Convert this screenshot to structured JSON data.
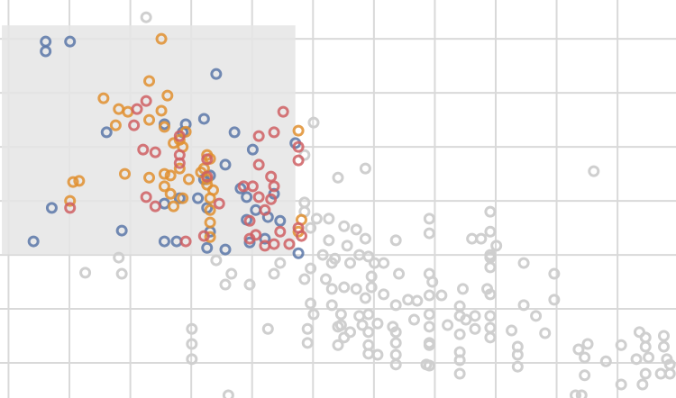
{
  "chart_data": {
    "type": "scatter",
    "title": "",
    "xlabel": "",
    "ylabel": "",
    "grid": true,
    "legend": "none",
    "xlim": [
      0,
      11.1
    ],
    "ylim": [
      0,
      7.37
    ],
    "selection_box": {
      "x": [
        0.03,
        4.85
      ],
      "y": [
        2.66,
        6.9
      ]
    },
    "colors": {
      "grid": "#d9d9d9",
      "selection": "#e5e5e5",
      "unselected": "#cfcfcf",
      "blue": "#5b77a8",
      "orange": "#e08f2f",
      "red": "#cf5f63"
    },
    "series": [
      {
        "color": "blue",
        "points": [
          [
            0.75,
            6.6
          ],
          [
            0.75,
            6.42
          ],
          [
            1.15,
            6.6
          ],
          [
            3.55,
            6.0
          ],
          [
            1.75,
            4.92
          ],
          [
            3.35,
            5.17
          ],
          [
            3.05,
            5.07
          ],
          [
            2.7,
            5.07
          ],
          [
            3.0,
            4.92
          ],
          [
            3.85,
            4.92
          ],
          [
            4.15,
            4.6
          ],
          [
            3.7,
            4.32
          ],
          [
            3.35,
            4.05
          ],
          [
            3.45,
            4.12
          ],
          [
            3.95,
            3.88
          ],
          [
            4.05,
            3.72
          ],
          [
            3.25,
            3.7
          ],
          [
            2.7,
            3.6
          ],
          [
            4.5,
            3.78
          ],
          [
            4.2,
            3.48
          ],
          [
            0.85,
            3.52
          ],
          [
            2.95,
            3.7
          ],
          [
            3.4,
            3.52
          ],
          [
            4.05,
            3.3
          ],
          [
            4.4,
            3.35
          ],
          [
            4.6,
            3.28
          ],
          [
            4.85,
            4.72
          ],
          [
            3.45,
            3.08
          ],
          [
            2.0,
            3.1
          ],
          [
            0.55,
            2.9
          ],
          [
            2.7,
            2.9
          ],
          [
            2.9,
            2.9
          ],
          [
            3.4,
            2.78
          ],
          [
            3.7,
            2.75
          ],
          [
            4.1,
            2.88
          ],
          [
            4.35,
            2.95
          ],
          [
            4.9,
            2.68
          ]
        ]
      },
      {
        "color": "orange",
        "points": [
          [
            2.65,
            6.65
          ],
          [
            2.45,
            5.87
          ],
          [
            2.75,
            5.6
          ],
          [
            1.7,
            5.55
          ],
          [
            1.95,
            5.35
          ],
          [
            2.1,
            5.3
          ],
          [
            2.65,
            5.32
          ],
          [
            2.45,
            5.15
          ],
          [
            2.7,
            5.02
          ],
          [
            1.9,
            5.05
          ],
          [
            3.05,
            4.93
          ],
          [
            2.95,
            4.78
          ],
          [
            2.85,
            4.72
          ],
          [
            3.0,
            4.65
          ],
          [
            3.4,
            4.5
          ],
          [
            4.9,
            4.95
          ],
          [
            3.45,
            4.43
          ],
          [
            2.95,
            4.25
          ],
          [
            3.3,
            4.18
          ],
          [
            3.4,
            4.05
          ],
          [
            2.05,
            4.15
          ],
          [
            2.7,
            4.15
          ],
          [
            2.8,
            4.12
          ],
          [
            3.1,
            4.05
          ],
          [
            3.35,
            4.25
          ],
          [
            1.2,
            4.0
          ],
          [
            1.3,
            4.02
          ],
          [
            1.15,
            3.65
          ],
          [
            2.45,
            4.08
          ],
          [
            2.7,
            3.92
          ],
          [
            2.8,
            3.78
          ],
          [
            3.0,
            3.7
          ],
          [
            3.4,
            3.95
          ],
          [
            3.5,
            3.85
          ],
          [
            2.85,
            3.55
          ],
          [
            3.45,
            3.7
          ],
          [
            3.45,
            3.48
          ],
          [
            3.45,
            3.25
          ],
          [
            3.45,
            2.98
          ],
          [
            4.95,
            3.3
          ],
          [
            4.9,
            3.08
          ]
        ]
      },
      {
        "color": "red",
        "points": [
          [
            2.4,
            5.5
          ],
          [
            2.25,
            5.35
          ],
          [
            4.65,
            5.3
          ],
          [
            2.2,
            5.05
          ],
          [
            2.95,
            4.85
          ],
          [
            4.25,
            4.85
          ],
          [
            4.5,
            4.92
          ],
          [
            4.9,
            4.65
          ],
          [
            2.35,
            4.6
          ],
          [
            2.55,
            4.55
          ],
          [
            2.95,
            4.5
          ],
          [
            2.95,
            4.35
          ],
          [
            3.4,
            4.42
          ],
          [
            4.25,
            4.32
          ],
          [
            4.45,
            4.1
          ],
          [
            4.9,
            4.4
          ],
          [
            3.4,
            4.1
          ],
          [
            4.0,
            3.92
          ],
          [
            4.15,
            3.92
          ],
          [
            4.5,
            3.92
          ],
          [
            4.25,
            3.72
          ],
          [
            3.6,
            3.6
          ],
          [
            2.4,
            3.72
          ],
          [
            2.55,
            3.55
          ],
          [
            4.45,
            3.68
          ],
          [
            4.35,
            3.48
          ],
          [
            1.15,
            3.52
          ],
          [
            4.1,
            3.28
          ],
          [
            4.6,
            3.08
          ],
          [
            4.9,
            3.15
          ],
          [
            4.95,
            3.0
          ],
          [
            3.05,
            2.9
          ],
          [
            3.35,
            3.0
          ],
          [
            4.1,
            2.95
          ],
          [
            4.2,
            3.02
          ],
          [
            4.35,
            2.82
          ],
          [
            4.5,
            2.85
          ],
          [
            4.75,
            2.85
          ]
        ]
      },
      {
        "color": "unselected",
        "points": [
          [
            2.4,
            7.05
          ],
          [
            5.15,
            5.1
          ],
          [
            5.0,
            4.5
          ],
          [
            6.0,
            4.25
          ],
          [
            5.55,
            4.08
          ],
          [
            9.75,
            4.2
          ],
          [
            5.0,
            3.62
          ],
          [
            5.0,
            3.45
          ],
          [
            5.2,
            3.32
          ],
          [
            5.1,
            3.15
          ],
          [
            5.4,
            3.32
          ],
          [
            5.65,
            3.18
          ],
          [
            5.85,
            3.12
          ],
          [
            6.0,
            2.95
          ],
          [
            5.4,
            2.92
          ],
          [
            5.7,
            2.82
          ],
          [
            5.9,
            2.65
          ],
          [
            6.15,
            2.5
          ],
          [
            6.5,
            2.92
          ],
          [
            7.05,
            3.32
          ],
          [
            7.05,
            3.05
          ],
          [
            8.05,
            3.45
          ],
          [
            7.75,
            2.95
          ],
          [
            7.9,
            2.95
          ],
          [
            8.05,
            3.08
          ],
          [
            8.15,
            2.82
          ],
          [
            8.05,
            2.6
          ],
          [
            1.4,
            2.32
          ],
          [
            1.95,
            2.6
          ],
          [
            4.6,
            2.5
          ],
          [
            5.1,
            2.4
          ],
          [
            5.45,
            2.5
          ],
          [
            6.1,
            2.25
          ],
          [
            6.3,
            2.5
          ],
          [
            6.55,
            2.3
          ],
          [
            7.05,
            2.3
          ],
          [
            7.1,
            2.15
          ],
          [
            7.6,
            2.02
          ],
          [
            8.0,
            2.02
          ],
          [
            8.05,
            2.42
          ],
          [
            8.6,
            2.5
          ],
          [
            9.1,
            2.3
          ],
          [
            8.05,
            2.65
          ],
          [
            3.7,
            2.1
          ],
          [
            3.8,
            2.3
          ],
          [
            4.1,
            2.1
          ],
          [
            3.55,
            2.55
          ],
          [
            4.5,
            2.3
          ],
          [
            5.0,
            2.2
          ],
          [
            5.35,
            2.2
          ],
          [
            5.45,
            2.02
          ],
          [
            5.65,
            2.05
          ],
          [
            5.85,
            2.02
          ],
          [
            6.0,
            1.85
          ],
          [
            6.1,
            2.05
          ],
          [
            6.3,
            1.92
          ],
          [
            6.5,
            1.72
          ],
          [
            6.7,
            1.82
          ],
          [
            6.85,
            1.8
          ],
          [
            7.05,
            1.9
          ],
          [
            7.25,
            1.9
          ],
          [
            7.55,
            1.7
          ],
          [
            7.55,
            1.52
          ],
          [
            8.05,
            1.92
          ],
          [
            8.05,
            1.52
          ],
          [
            8.6,
            1.72
          ],
          [
            8.8,
            1.52
          ],
          [
            9.1,
            1.82
          ],
          [
            5.3,
            2.65
          ],
          [
            5.5,
            2.58
          ],
          [
            5.75,
            2.5
          ],
          [
            6.05,
            2.62
          ],
          [
            5.1,
            1.75
          ],
          [
            5.15,
            1.55
          ],
          [
            5.45,
            1.72
          ],
          [
            5.6,
            1.55
          ],
          [
            5.6,
            1.35
          ],
          [
            5.9,
            1.52
          ],
          [
            5.95,
            1.35
          ],
          [
            6.05,
            1.55
          ],
          [
            6.05,
            1.22
          ],
          [
            6.2,
            1.38
          ],
          [
            6.45,
            1.32
          ],
          [
            6.5,
            1.22
          ],
          [
            6.5,
            1.02
          ],
          [
            6.8,
            1.45
          ],
          [
            7.05,
            1.55
          ],
          [
            7.05,
            1.32
          ],
          [
            7.05,
            1.02
          ],
          [
            7.35,
            1.35
          ],
          [
            7.55,
            1.18
          ],
          [
            7.55,
            0.85
          ],
          [
            7.65,
            1.45
          ],
          [
            7.8,
            1.28
          ],
          [
            7.8,
            1.52
          ],
          [
            8.05,
            1.3
          ],
          [
            8.05,
            1.12
          ],
          [
            8.4,
            1.25
          ],
          [
            4.4,
            1.28
          ],
          [
            3.15,
            1.28
          ],
          [
            5.05,
            1.28
          ],
          [
            5.05,
            1.02
          ],
          [
            5.55,
            0.98
          ],
          [
            5.55,
            1.32
          ],
          [
            5.65,
            1.12
          ],
          [
            5.75,
            1.22
          ],
          [
            6.05,
            0.98
          ],
          [
            6.05,
            0.82
          ],
          [
            6.2,
            0.8
          ],
          [
            6.5,
            0.8
          ],
          [
            6.5,
            0.62
          ],
          [
            7.05,
            0.98
          ],
          [
            7.05,
            0.6
          ],
          [
            7.55,
            0.7
          ],
          [
            7.55,
            0.45
          ],
          [
            8.5,
            0.95
          ],
          [
            8.5,
            0.8
          ],
          [
            8.5,
            0.58
          ],
          [
            8.95,
            1.2
          ],
          [
            9.5,
            0.9
          ],
          [
            9.65,
            1.0
          ],
          [
            9.6,
            0.75
          ],
          [
            9.95,
            0.68
          ],
          [
            10.2,
            0.98
          ],
          [
            10.5,
            1.22
          ],
          [
            10.6,
            1.12
          ],
          [
            10.6,
            0.95
          ],
          [
            10.65,
            0.75
          ],
          [
            10.45,
            0.72
          ],
          [
            10.9,
            1.15
          ],
          [
            10.9,
            0.95
          ],
          [
            10.95,
            0.72
          ],
          [
            11.0,
            0.62
          ],
          [
            11.0,
            0.45
          ],
          [
            10.85,
            0.45
          ],
          [
            10.6,
            0.45
          ],
          [
            10.55,
            0.25
          ],
          [
            10.2,
            0.25
          ],
          [
            9.6,
            0.42
          ],
          [
            9.55,
            0.05
          ],
          [
            9.45,
            0.05
          ],
          [
            3.15,
            1.0
          ],
          [
            3.15,
            0.72
          ],
          [
            3.75,
            0.05
          ],
          [
            7.0,
            0.62
          ],
          [
            2.0,
            2.3
          ]
        ]
      }
    ]
  }
}
